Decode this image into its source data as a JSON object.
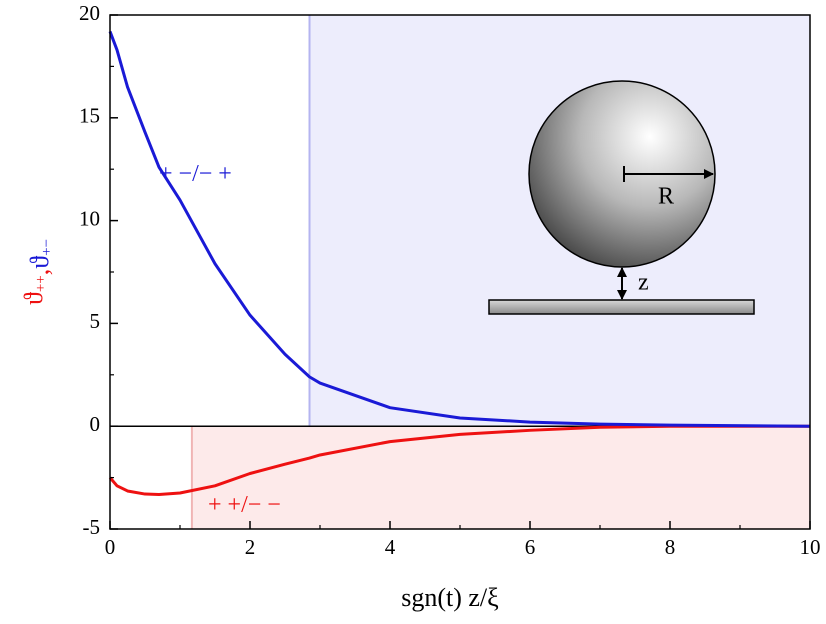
{
  "chart_data": {
    "type": "line",
    "xlabel": "sgn(t) z/ξ",
    "ylabel_separator": ",",
    "x": [
      0,
      0.1,
      0.25,
      0.5,
      0.7,
      1,
      1.5,
      2,
      2.5,
      2.85,
      3,
      4,
      5,
      6,
      7,
      8,
      10
    ],
    "series": [
      {
        "name": "ϑ++",
        "color": "#ee1111",
        "values": [
          -2.5,
          -2.9,
          -3.15,
          -3.3,
          -3.32,
          -3.25,
          -2.9,
          -2.3,
          -1.85,
          -1.55,
          -1.4,
          -0.75,
          -0.4,
          -0.2,
          -0.05,
          0,
          0
        ]
      },
      {
        "name": "ϑ+−",
        "color": "#1a1ad6",
        "values": [
          19.2,
          18.3,
          16.5,
          14.3,
          12.6,
          11.0,
          7.9,
          5.4,
          3.5,
          2.4,
          2.1,
          0.9,
          0.4,
          0.2,
          0.1,
          0.05,
          0
        ]
      }
    ],
    "regions": [
      {
        "x0": 2.85,
        "y0": 0,
        "y1": 20,
        "color": "#ededfc",
        "edge": "#b4b4f0"
      },
      {
        "x0": 1.17,
        "y0": -5,
        "y1": 0,
        "color": "#fdeaea",
        "edge": "#f0b4b4"
      }
    ],
    "annotations": [
      {
        "text": "+ −/− +",
        "x": 0.7,
        "y": 12.2,
        "color": "#1a1ad6"
      },
      {
        "text": "+ +/− −",
        "x": 1.4,
        "y": -3.9,
        "color": "#ee1111"
      }
    ],
    "inset": {
      "radius_label": "R",
      "gap_label": "z"
    },
    "xlim": [
      0,
      10
    ],
    "xticks": [
      0,
      2,
      4,
      6,
      8,
      10
    ],
    "xminorticks": [
      1,
      3,
      5,
      7,
      9
    ],
    "ylim": [
      -5,
      20
    ],
    "yticks": [
      -5,
      0,
      5,
      10,
      15,
      20
    ],
    "yminorticks": [
      -2.5,
      2.5,
      7.5,
      12.5,
      17.5
    ]
  }
}
